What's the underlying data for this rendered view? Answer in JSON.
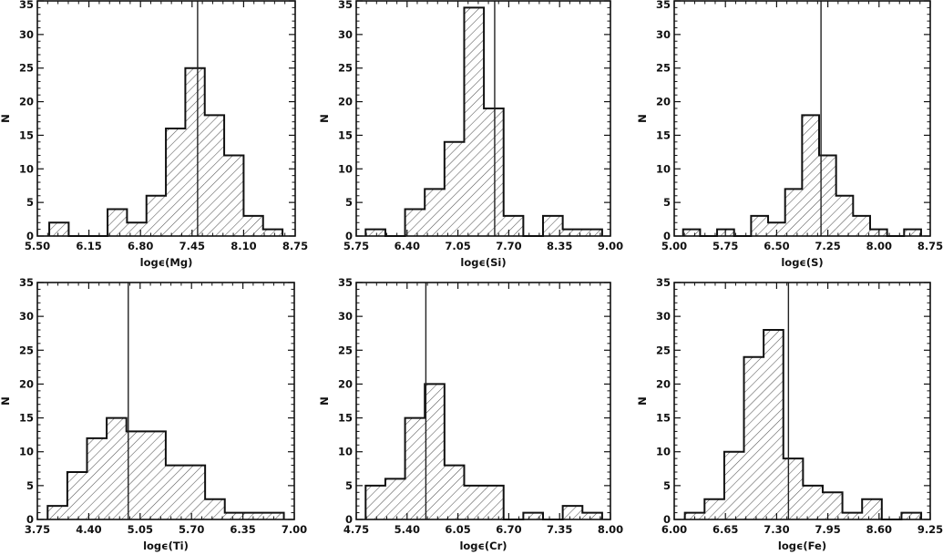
{
  "colors": {
    "axis": "#111111",
    "hatch": "#555555",
    "mean_line": "#222222"
  },
  "chart_data": [
    {
      "type": "bar",
      "element": "Mg",
      "xlabel": "logϵ(Mg)",
      "ylabel": "N",
      "xlim": [
        5.5,
        8.75
      ],
      "ylim": [
        0,
        35
      ],
      "xticks": [
        "5.50",
        "6.15",
        "6.80",
        "7.45",
        "8.10",
        "8.75"
      ],
      "yticks": [
        "0",
        "5",
        "10",
        "15",
        "20",
        "25",
        "30",
        "35"
      ],
      "bin_start": 5.65,
      "bin_width": 0.245,
      "counts": [
        2,
        0,
        0,
        4,
        2,
        6,
        16,
        25,
        18,
        12,
        3,
        1
      ],
      "mean_line": 7.52
    },
    {
      "type": "bar",
      "element": "Si",
      "xlabel": "logϵ(Si)",
      "ylabel": "N",
      "xlim": [
        5.75,
        9.0
      ],
      "ylim": [
        0,
        35
      ],
      "xticks": [
        "5.75",
        "6.40",
        "7.05",
        "7.70",
        "8.35",
        "9.00"
      ],
      "yticks": [
        "0",
        "5",
        "10",
        "15",
        "20",
        "25",
        "30",
        "35"
      ],
      "bin_start": 5.87,
      "bin_width": 0.252,
      "counts": [
        1,
        0,
        4,
        7,
        14,
        34,
        19,
        3,
        0,
        3,
        1,
        1
      ],
      "mean_line": 7.52
    },
    {
      "type": "bar",
      "element": "S",
      "xlabel": "logϵ(S)",
      "ylabel": "N",
      "xlim": [
        5.0,
        8.75
      ],
      "ylim": [
        0,
        35
      ],
      "xticks": [
        "5.00",
        "5.75",
        "6.50",
        "7.25",
        "8.00",
        "8.75"
      ],
      "yticks": [
        "0",
        "5",
        "10",
        "15",
        "20",
        "25",
        "30",
        "35"
      ],
      "bin_start": 5.13,
      "bin_width": 0.249,
      "counts": [
        1,
        0,
        1,
        0,
        3,
        2,
        7,
        18,
        12,
        6,
        3,
        1,
        0,
        1
      ],
      "mean_line": 7.15
    },
    {
      "type": "bar",
      "element": "Ti",
      "xlabel": "logϵ(Ti)",
      "ylabel": "N",
      "xlim": [
        3.75,
        7.0
      ],
      "ylim": [
        0,
        35
      ],
      "xticks": [
        "3.75",
        "4.40",
        "5.05",
        "5.70",
        "6.35",
        "7.00"
      ],
      "yticks": [
        "0",
        "5",
        "10",
        "15",
        "20",
        "25",
        "30",
        "35"
      ],
      "bin_start": 3.88,
      "bin_width": 0.249,
      "counts": [
        2,
        7,
        12,
        15,
        13,
        13,
        8,
        8,
        3,
        1,
        1,
        1
      ],
      "mean_line": 4.9
    },
    {
      "type": "bar",
      "element": "Cr",
      "xlabel": "logϵ(Cr)",
      "ylabel": "N",
      "xlim": [
        4.75,
        8.0
      ],
      "ylim": [
        0,
        35
      ],
      "xticks": [
        "4.75",
        "5.40",
        "6.05",
        "6.70",
        "7.35",
        "8.00"
      ],
      "yticks": [
        "0",
        "5",
        "10",
        "15",
        "20",
        "25",
        "30",
        "35"
      ],
      "bin_start": 4.87,
      "bin_width": 0.252,
      "counts": [
        5,
        6,
        15,
        20,
        8,
        5,
        5,
        0,
        1,
        0,
        2,
        1
      ],
      "mean_line": 5.64
    },
    {
      "type": "bar",
      "element": "Fe",
      "xlabel": "logϵ(Fe)",
      "ylabel": "N",
      "xlim": [
        6.0,
        9.25
      ],
      "ylim": [
        0,
        35
      ],
      "xticks": [
        "6.00",
        "6.65",
        "7.30",
        "7.95",
        "8.60",
        "9.25"
      ],
      "yticks": [
        "0",
        "5",
        "10",
        "15",
        "20",
        "25",
        "30",
        "35"
      ],
      "bin_start": 6.135,
      "bin_width": 0.25,
      "counts": [
        1,
        3,
        10,
        24,
        28,
        9,
        5,
        4,
        1,
        3,
        0,
        1
      ],
      "mean_line": 7.45
    }
  ]
}
